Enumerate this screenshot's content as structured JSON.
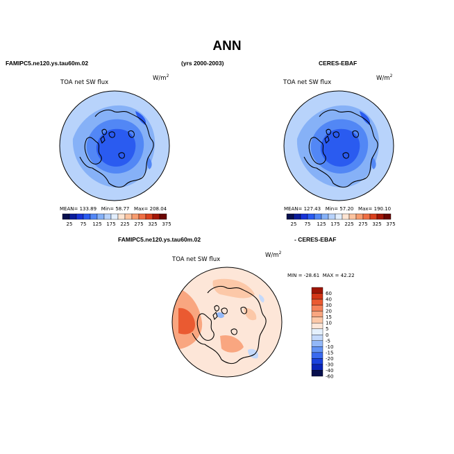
{
  "title": "ANN",
  "header": {
    "left_case": "FAMIPC5.ne120.ys.tau60m.02",
    "years": "(yrs 2000-2003)",
    "right_obs": "CERES-EBAF"
  },
  "diff_header": {
    "left": "FAMIPC5.ne120.ys.tau60m.02",
    "right": "- CERES-EBAF"
  },
  "units_label": "W/m",
  "units_exp": "2",
  "colors": {
    "abs_scale": [
      "#08104e",
      "#0a1c9a",
      "#1733d6",
      "#2a5bf0",
      "#5287f5",
      "#86b1f7",
      "#b8d3fb",
      "#e2eefd",
      "#fde5d3",
      "#fcc4a0",
      "#f79c6f",
      "#ef6f44",
      "#d9411f",
      "#a31708",
      "#6a0603"
    ],
    "diff_scale": [
      "#08104e",
      "#0a25b8",
      "#1a42dd",
      "#3a6aef",
      "#6494f5",
      "#93b8f8",
      "#c4d9fb",
      "#e4f0fd",
      "#fde6d8",
      "#fcc8a8",
      "#f9a680",
      "#f5825a",
      "#ea5a31",
      "#d23516",
      "#9e1505"
    ],
    "land_outline": "#000000"
  },
  "chart_data": [
    {
      "type": "heatmap",
      "name": "model",
      "projection": "north-polar-stereographic",
      "title": "TOA net SW flux",
      "units": "W/m2",
      "stats": {
        "mean_label": "MEAN=",
        "mean": "133.89",
        "min_label": "Min=",
        "min": "58.77",
        "max_label": "Max=",
        "max": "208.04"
      },
      "levels": [
        25,
        50,
        75,
        100,
        125,
        150,
        175,
        200,
        225,
        250,
        275,
        300,
        325,
        350
      ],
      "tick_labels": [
        "25",
        "75",
        "125",
        "175",
        "225",
        "275",
        "325",
        "375"
      ]
    },
    {
      "type": "heatmap",
      "name": "obs",
      "projection": "north-polar-stereographic",
      "title": "TOA net SW flux",
      "units": "W/m2",
      "stats": {
        "mean_label": "MEAN=",
        "mean": "127.43",
        "min_label": "Min=",
        "min": "57.20",
        "max_label": "Max=",
        "max": "190.10"
      },
      "levels": [
        25,
        50,
        75,
        100,
        125,
        150,
        175,
        200,
        225,
        250,
        275,
        300,
        325,
        350
      ],
      "tick_labels": [
        "25",
        "75",
        "125",
        "175",
        "225",
        "275",
        "325",
        "375"
      ]
    },
    {
      "type": "heatmap",
      "name": "difference",
      "projection": "north-polar-stereographic",
      "title": "TOA net SW flux",
      "units": "W/m2",
      "stats": {
        "min_label": "MIN =",
        "min": "-28.61",
        "max_label": "MAX =",
        "max": "42.22"
      },
      "levels": [
        -60,
        -40,
        -30,
        -20,
        -15,
        -10,
        -5,
        0,
        5,
        10,
        15,
        20,
        30,
        40,
        60
      ],
      "tick_labels": [
        "60",
        "40",
        "30",
        "20",
        "15",
        "10",
        "5",
        "0",
        "-5",
        "-10",
        "-15",
        "-20",
        "-30",
        "-40",
        "-60"
      ]
    }
  ]
}
